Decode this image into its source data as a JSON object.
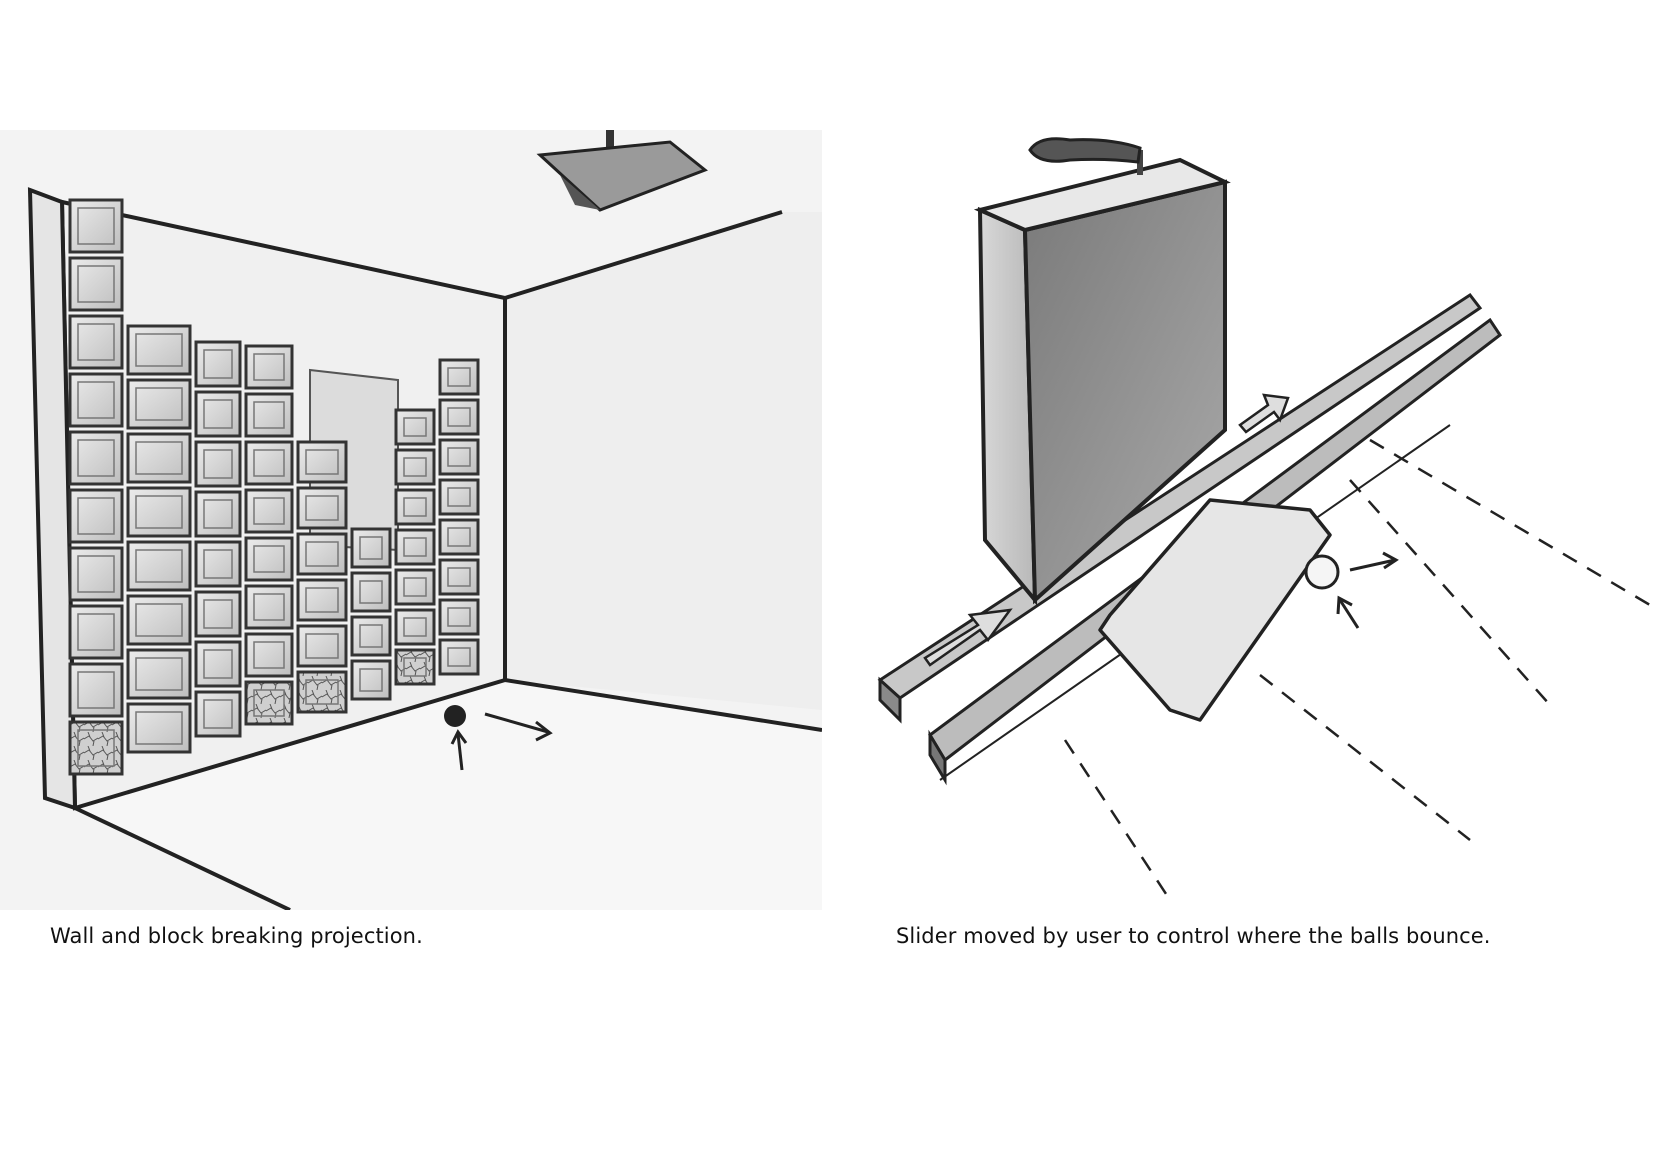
{
  "captions": {
    "left": "Wall and block breaking projection.",
    "right": "Slider moved by user to control where the balls bounce."
  },
  "illustration": {
    "wall_grid": {
      "columns": [
        {
          "rows": 10
        },
        {
          "rows": 8
        },
        {
          "rows": 8
        },
        {
          "rows": 8
        },
        {
          "rows": 6
        },
        {
          "rows": 4
        },
        {
          "rows": 7
        },
        {
          "rows": 8
        }
      ]
    }
  }
}
